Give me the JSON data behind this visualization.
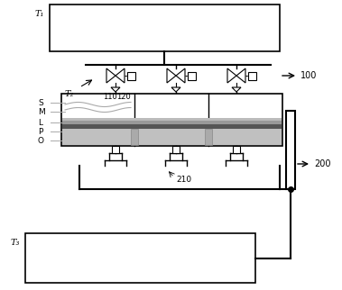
{
  "bg_color": "#ffffff",
  "line_color": "#000000",
  "gray_color": "#888888",
  "title_t1": "T₁",
  "title_t2": "T₂",
  "title_t3": "T₃",
  "label_100": "100",
  "label_200": "200",
  "label_110": "110",
  "label_120": "120",
  "label_210": "210",
  "label_S": "S",
  "label_M": "M",
  "label_L": "L",
  "label_P": "P",
  "label_O": "O"
}
